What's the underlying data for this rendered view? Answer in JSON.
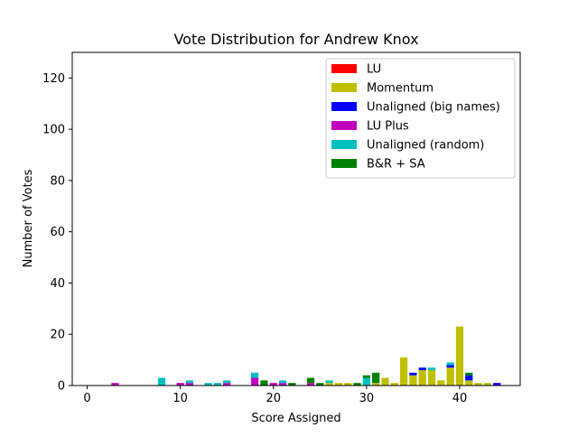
{
  "chart_data": {
    "type": "bar",
    "stacked": true,
    "title": "Vote Distribution for Andrew Knox",
    "xlabel": "Score Assigned",
    "ylabel": "Number of Votes",
    "xlim": [
      -1.6,
      46.5
    ],
    "ylim": [
      0,
      130
    ],
    "xticks": [
      0,
      10,
      20,
      30,
      40
    ],
    "yticks": [
      0,
      20,
      40,
      60,
      80,
      100,
      120
    ],
    "grid": false,
    "legend_position": "top-right",
    "series": [
      {
        "name": "LU",
        "color": "#ff0000",
        "points": []
      },
      {
        "name": "Momentum",
        "color": "#bfbf00",
        "points": [
          [
            26,
            1
          ],
          [
            27,
            1
          ],
          [
            28,
            1
          ],
          [
            31,
            1
          ],
          [
            32,
            3
          ],
          [
            33,
            1
          ],
          [
            34,
            11
          ],
          [
            35,
            4
          ],
          [
            36,
            6
          ],
          [
            37,
            6
          ],
          [
            38,
            2
          ],
          [
            39,
            7
          ],
          [
            40,
            23
          ],
          [
            41,
            2
          ],
          [
            42,
            1
          ],
          [
            43,
            1
          ]
        ]
      },
      {
        "name": "Unaligned (big names)",
        "color": "#0000ff",
        "points": [
          [
            35,
            1
          ],
          [
            36,
            1
          ],
          [
            39,
            1
          ],
          [
            41,
            2
          ],
          [
            44,
            1
          ]
        ]
      },
      {
        "name": "LU Plus",
        "color": "#bf00bf",
        "points": [
          [
            3,
            1
          ],
          [
            10,
            1
          ],
          [
            11,
            1
          ],
          [
            15,
            1
          ],
          [
            18,
            3
          ],
          [
            20,
            1
          ],
          [
            21,
            1
          ],
          [
            24,
            1
          ]
        ]
      },
      {
        "name": "Unaligned (random)",
        "color": "#00bfbf",
        "points": [
          [
            8,
            3
          ],
          [
            11,
            1
          ],
          [
            13,
            1
          ],
          [
            14,
            1
          ],
          [
            15,
            1
          ],
          [
            18,
            2
          ],
          [
            21,
            1
          ],
          [
            26,
            1
          ],
          [
            30,
            3
          ],
          [
            37,
            1
          ],
          [
            39,
            1
          ]
        ]
      },
      {
        "name": "B&R + SA",
        "color": "#008000",
        "points": [
          [
            19,
            2
          ],
          [
            22,
            1
          ],
          [
            24,
            2
          ],
          [
            25,
            1
          ],
          [
            29,
            1
          ],
          [
            30,
            1
          ],
          [
            31,
            4
          ],
          [
            41,
            1
          ]
        ]
      }
    ]
  }
}
